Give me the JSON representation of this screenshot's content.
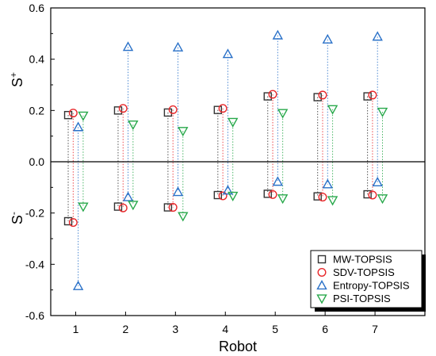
{
  "chart_data": {
    "type": "scatter",
    "xlabel": "Robot",
    "ylabel_upper": "S",
    "ylabel_upper_sup": "+",
    "ylabel_lower": "S",
    "ylabel_lower_sup": "-",
    "categories": [
      1,
      2,
      3,
      4,
      5,
      6,
      7
    ],
    "xticks": [
      "1",
      "2",
      "3",
      "4",
      "5",
      "6",
      "7"
    ],
    "ylim": [
      -0.6,
      0.6
    ],
    "yticks": [
      "-0.6",
      "-0.4",
      "-0.2",
      "0.0",
      "0.2",
      "0.4",
      "0.6"
    ],
    "ytick_values": [
      -0.6,
      -0.4,
      -0.2,
      0.0,
      0.2,
      0.4,
      0.6
    ],
    "grid": false,
    "legend_position": "bottom-right",
    "connector_style": "dotted vertical lines between S+ and S- markers",
    "series": [
      {
        "name": "MW-TOPSIS",
        "marker": "square",
        "color": "#333333",
        "s_plus": [
          0.182,
          0.2,
          0.192,
          0.202,
          0.255,
          0.252,
          0.255
        ],
        "s_minus": [
          -0.232,
          -0.175,
          -0.178,
          -0.13,
          -0.125,
          -0.135,
          -0.127
        ]
      },
      {
        "name": "SDV-TOPSIS",
        "marker": "circle",
        "color": "#e8272a",
        "s_plus": [
          0.19,
          0.208,
          0.203,
          0.208,
          0.263,
          0.26,
          0.26
        ],
        "s_minus": [
          -0.237,
          -0.18,
          -0.178,
          -0.133,
          -0.128,
          -0.138,
          -0.13
        ]
      },
      {
        "name": "Entropy-TOPSIS",
        "marker": "triangle-up",
        "color": "#2a71c8",
        "s_plus": [
          0.135,
          0.448,
          0.446,
          0.42,
          0.493,
          0.477,
          0.488
        ],
        "s_minus": [
          -0.485,
          -0.138,
          -0.118,
          -0.112,
          -0.078,
          -0.088,
          -0.08
        ]
      },
      {
        "name": "PSI-TOPSIS",
        "marker": "triangle-down",
        "color": "#27a84a",
        "s_plus": [
          0.18,
          0.145,
          0.12,
          0.155,
          0.19,
          0.205,
          0.195
        ],
        "s_minus": [
          -0.175,
          -0.168,
          -0.212,
          -0.133,
          -0.143,
          -0.15,
          -0.143
        ]
      }
    ]
  }
}
